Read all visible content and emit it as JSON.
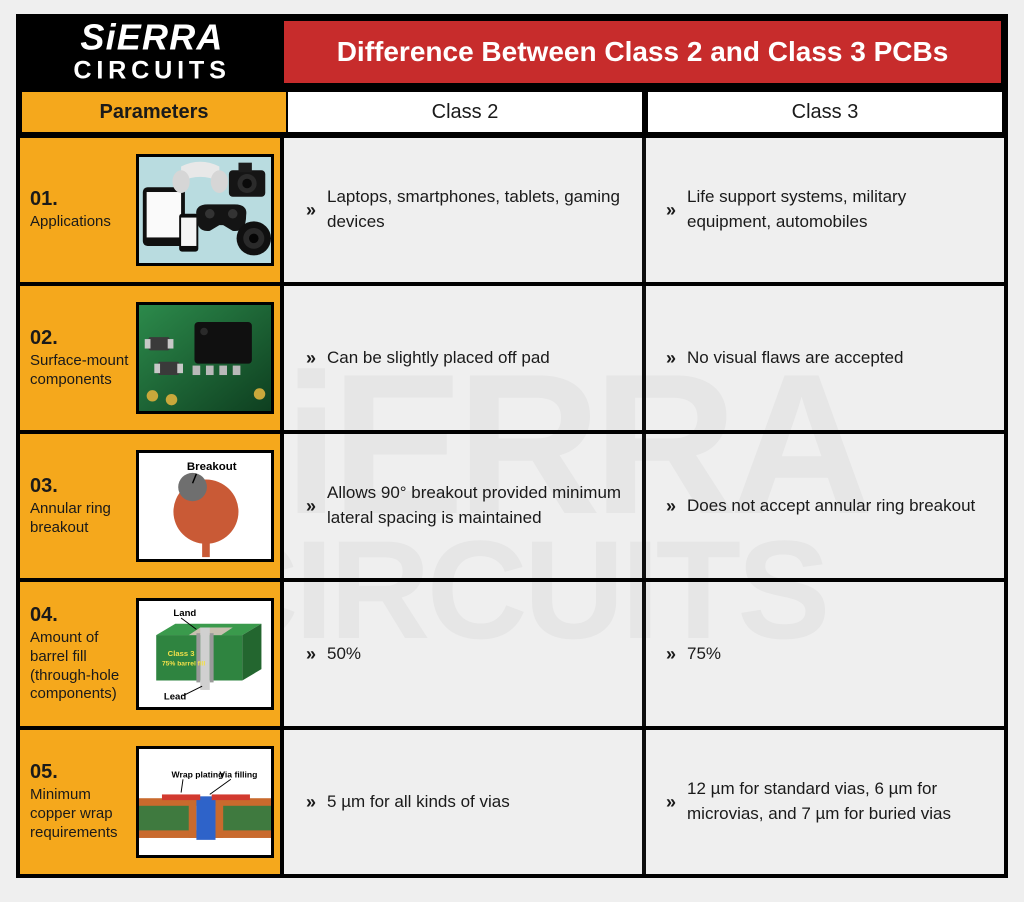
{
  "brand": {
    "line1": "SiERRA",
    "line2": "CIRCUITS"
  },
  "title": "Difference Between Class 2 and Class 3 PCBs",
  "watermark": {
    "line1": "SiERRA",
    "line2": "CIRCUITS"
  },
  "colors": {
    "black": "#000000",
    "red": "#c72c2c",
    "yellow": "#f5a81c",
    "rowgray": "#efefef",
    "white": "#ffffff"
  },
  "header": {
    "parameters": "Parameters",
    "class2": "Class 2",
    "class3": "Class 3"
  },
  "bullet": "»",
  "rows": [
    {
      "num": "01.",
      "name": "Applications",
      "thumb": "devices",
      "class2": "Laptops, smartphones, tablets, gaming devices",
      "class3": "Life support systems, military equipment, automobiles"
    },
    {
      "num": "02.",
      "name": "Surface-mount components",
      "thumb": "smt",
      "class2": "Can be slightly placed off pad",
      "class3": "No visual flaws are accepted"
    },
    {
      "num": "03.",
      "name": "Annular ring breakout",
      "thumb": "breakout",
      "thumb_label": "Breakout",
      "class2": "Allows 90° breakout provided minimum lateral spacing is maintained",
      "class3": "Does not accept annular ring breakout"
    },
    {
      "num": "04.",
      "name": "Amount of barrel fill (through-hole components)",
      "thumb": "barrel",
      "thumb_labels": {
        "land": "Land",
        "lead": "Lead",
        "text1": "Class 3",
        "text2": "75% barrel fill"
      },
      "class2": "50%",
      "class3": "75%"
    },
    {
      "num": "05.",
      "name": "Minimum copper wrap requirements",
      "thumb": "wrap",
      "thumb_labels": {
        "wrap": "Wrap plating",
        "via": "Via filling"
      },
      "class2": "5 µm for all kinds of vias",
      "class3": "12 µm for standard vias, 6 µm for microvias, and 7 µm for buried vias"
    }
  ]
}
